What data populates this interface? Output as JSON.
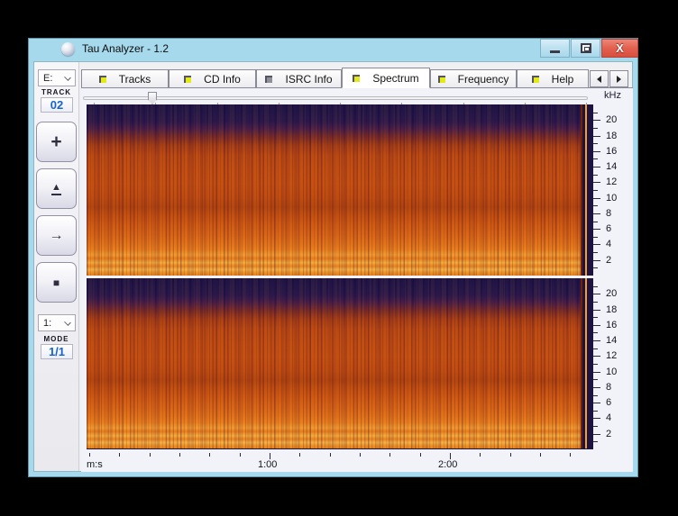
{
  "window": {
    "title": "Tau Analyzer - 1.2",
    "close_glyph": "X"
  },
  "tabs": {
    "items": [
      {
        "label": "Tracks",
        "icon": "yellow",
        "active": false
      },
      {
        "label": "CD Info",
        "icon": "yellow",
        "active": false
      },
      {
        "label": "ISRC Info",
        "icon": "gray",
        "active": false
      },
      {
        "label": "Spectrum",
        "icon": "yellow",
        "active": true
      },
      {
        "label": "Frequency",
        "icon": "yellow",
        "active": false
      },
      {
        "label": "Help",
        "icon": "yellow",
        "active": false
      }
    ]
  },
  "sidebar": {
    "drive_select_value": "E:",
    "track_label": "TRACK",
    "track_number": "02",
    "transport_buttons": [
      {
        "name": "plus",
        "glyph": "+"
      },
      {
        "name": "eject",
        "glyph": "▲"
      },
      {
        "name": "next",
        "glyph": "→"
      },
      {
        "name": "stop",
        "glyph": "■"
      }
    ],
    "mode_select_value": "1:",
    "mode_label": "MODE",
    "mode_value": "1/1"
  },
  "spectrum_view": {
    "freq_unit_label": "kHz",
    "freq_major_ticks": [
      20,
      18,
      16,
      14,
      12,
      10,
      8,
      6,
      4,
      2
    ],
    "freq_axis_max_khz": 22,
    "channels": [
      "left",
      "right"
    ],
    "time_axis_label": "m:s",
    "time_major_labels": [
      {
        "time": "1:00",
        "seconds": 60
      },
      {
        "time": "2:00",
        "seconds": 120
      }
    ],
    "time_tick_interval_seconds": 10,
    "time_axis_last_tick_seconds": 160,
    "track_end_seconds": 163,
    "colors": {
      "high_freq_background": "#1d1342",
      "mid_energy": "#c24a0d",
      "high_energy_band": "#f7b246",
      "track_end_marker": "#f59d2b",
      "titlebar": "#a6d9ec",
      "close_button": "#e2604f",
      "value_text_blue": "#1663cc"
    }
  }
}
